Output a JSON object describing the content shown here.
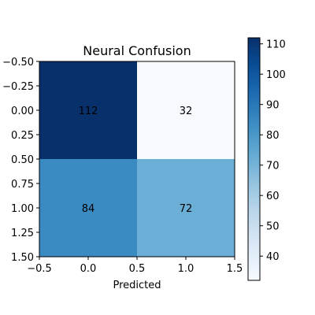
{
  "chart_data": {
    "type": "heatmap",
    "title": "Neural Confusion",
    "xlabel": "Predicted",
    "ylabel": "",
    "matrix": [
      [
        112,
        32
      ],
      [
        84,
        72
      ]
    ],
    "xlim": [
      -0.5,
      1.5
    ],
    "ylim": [
      1.5,
      -0.5
    ],
    "x_ticks": [
      -0.5,
      0.0,
      0.5,
      1.0,
      1.5
    ],
    "x_tick_labels": [
      "−0.5",
      "0.0",
      "0.5",
      "1.0",
      "1.5"
    ],
    "y_ticks": [
      -0.5,
      -0.25,
      0.0,
      0.25,
      0.5,
      0.75,
      1.0,
      1.25,
      1.5
    ],
    "y_tick_labels": [
      "−0.50",
      "−0.25",
      "0.00",
      "0.25",
      "0.50",
      "0.75",
      "1.00",
      "1.25",
      "1.50"
    ],
    "colormap": "Blues",
    "colorbar": {
      "range": [
        32,
        112
      ],
      "ticks": [
        40,
        50,
        60,
        70,
        80,
        90,
        100,
        110
      ],
      "tick_labels": [
        "40",
        "50",
        "60",
        "70",
        "80",
        "90",
        "100",
        "110"
      ]
    },
    "grid": false
  }
}
